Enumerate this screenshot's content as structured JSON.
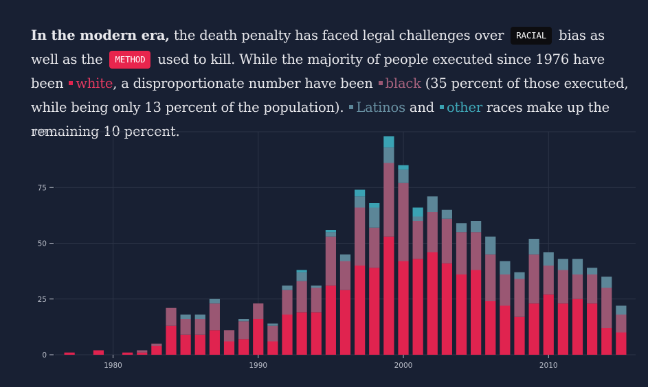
{
  "intro": {
    "lead": "In the modern era,",
    "t1": " the death penalty has faced legal challenges over ",
    "racial_label": "RACIAL",
    "t2": " bias as well as the ",
    "method_label": "METHOD",
    "t3": " used to kill. While the majority of people executed since 1976 have been ",
    "white_label": "white",
    "t4": ", a disproportionate number have been ",
    "black_label": "black",
    "t5": " (35 percent of those executed, while being only 13 percent of the population). ",
    "latino_label": "Latinos",
    "t6": " and ",
    "other_label": "other",
    "t7": " races make up the remaining 10 percent."
  },
  "colors": {
    "white": "#e0234f",
    "black": "#9a5773",
    "latino": "#5c8698",
    "other": "#3aa2b3",
    "background": "#182033",
    "grid": "#2c3447"
  },
  "chart_data": {
    "type": "bar",
    "stacked": true,
    "x": [
      1977,
      1978,
      1979,
      1980,
      1981,
      1982,
      1983,
      1984,
      1985,
      1986,
      1987,
      1988,
      1989,
      1990,
      1991,
      1992,
      1993,
      1994,
      1995,
      1996,
      1997,
      1998,
      1999,
      2000,
      2001,
      2002,
      2003,
      2004,
      2005,
      2006,
      2007,
      2008,
      2009,
      2010,
      2011,
      2012,
      2013,
      2014,
      2015
    ],
    "series": [
      {
        "key": "white",
        "values": [
          1,
          0,
          2,
          0,
          1,
          1,
          4,
          13,
          9,
          9,
          11,
          6,
          7,
          16,
          6,
          18,
          19,
          19,
          31,
          29,
          40,
          39,
          53,
          42,
          43,
          46,
          41,
          36,
          38,
          24,
          22,
          17,
          23,
          27,
          23,
          25,
          23,
          12,
          10
        ]
      },
      {
        "key": "black",
        "values": [
          0,
          0,
          0,
          0,
          0,
          1,
          1,
          8,
          7,
          7,
          12,
          5,
          8,
          7,
          7,
          11,
          14,
          11,
          22,
          13,
          26,
          18,
          33,
          35,
          17,
          18,
          20,
          19,
          17,
          21,
          14,
          17,
          22,
          13,
          15,
          11,
          13,
          18,
          8
        ]
      },
      {
        "key": "latino",
        "values": [
          0,
          0,
          0,
          0,
          0,
          0,
          0,
          0,
          2,
          2,
          2,
          0,
          1,
          0,
          1,
          2,
          4,
          1,
          2,
          3,
          5,
          9,
          7,
          6,
          2,
          7,
          4,
          4,
          5,
          8,
          6,
          3,
          7,
          6,
          5,
          7,
          3,
          5,
          4
        ]
      },
      {
        "key": "other",
        "values": [
          0,
          0,
          0,
          0,
          0,
          0,
          0,
          0,
          0,
          0,
          0,
          0,
          0,
          0,
          0,
          0,
          1,
          0,
          1,
          0,
          3,
          2,
          5,
          2,
          4,
          0,
          0,
          0,
          0,
          0,
          0,
          0,
          0,
          0,
          0,
          0,
          0,
          0,
          0
        ]
      }
    ],
    "xticks": [
      1980,
      1990,
      2000,
      2010
    ],
    "yticks": [
      0,
      25,
      50,
      75,
      100
    ],
    "xlim": [
      1976,
      2016
    ],
    "ylim": [
      0,
      100
    ]
  }
}
